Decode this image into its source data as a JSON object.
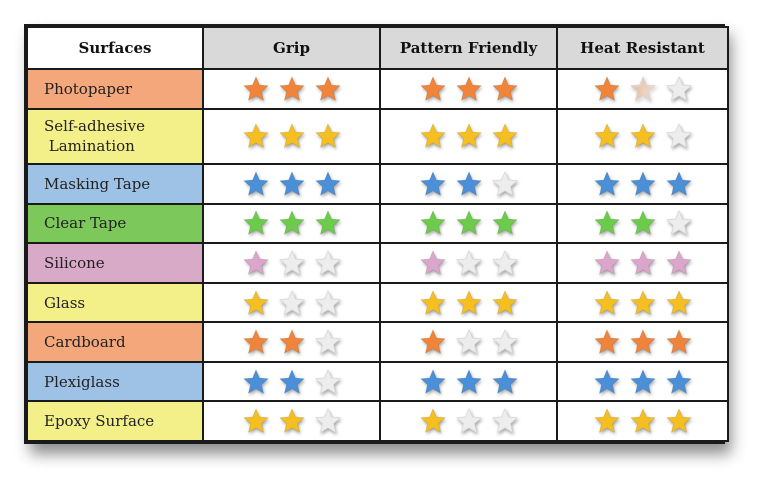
{
  "headers": [
    "Surfaces",
    "Grip",
    "Pattern Friendly",
    "Heat Resistant"
  ],
  "colors": {
    "orange": "#f0843a",
    "yellow": "#f5bf22",
    "blue": "#4a8fd8",
    "green": "#6ccb4a",
    "pink": "#dca6cc",
    "empty": "#ededed"
  },
  "rows": [
    {
      "surface": "Photopaper",
      "surface_lines": [
        "Photopaper"
      ],
      "bg": "#f4a77a",
      "color": "orange",
      "grip": 3,
      "pattern": 3,
      "heat": 1.5
    },
    {
      "surface": "Self-adhesive Lamination",
      "surface_lines": [
        "Self-adhesive",
        " Lamination"
      ],
      "bg": "#f3f08a",
      "color": "yellow",
      "grip": 3,
      "pattern": 3,
      "heat": 2
    },
    {
      "surface": "Masking Tape",
      "surface_lines": [
        "Masking Tape"
      ],
      "bg": "#9ec2e5",
      "color": "blue",
      "grip": 3,
      "pattern": 2,
      "heat": 3
    },
    {
      "surface": "Clear Tape",
      "surface_lines": [
        "Clear Tape"
      ],
      "bg": "#7cc85a",
      "color": "green",
      "grip": 3,
      "pattern": 3,
      "heat": 2
    },
    {
      "surface": "Silicone",
      "surface_lines": [
        "Silicone"
      ],
      "bg": "#d9a9c8",
      "color": "pink",
      "grip": 1,
      "pattern": 1,
      "heat": 3
    },
    {
      "surface": "Glass",
      "surface_lines": [
        "Glass"
      ],
      "bg": "#f3f08a",
      "color": "yellow",
      "grip": 1,
      "pattern": 3,
      "heat": 3
    },
    {
      "surface": "Cardboard",
      "surface_lines": [
        "Cardboard"
      ],
      "bg": "#f4a77a",
      "color": "orange",
      "grip": 2,
      "pattern": 1,
      "heat": 3
    },
    {
      "surface": "Plexiglass",
      "surface_lines": [
        "Plexiglass"
      ],
      "bg": "#9ec2e5",
      "color": "blue",
      "grip": 2,
      "pattern": 3,
      "heat": 3
    },
    {
      "surface": "Epoxy Surface",
      "surface_lines": [
        "Epoxy Surface"
      ],
      "bg": "#f3f08a",
      "color": "yellow",
      "grip": 2,
      "pattern": 1,
      "heat": 3
    }
  ]
}
